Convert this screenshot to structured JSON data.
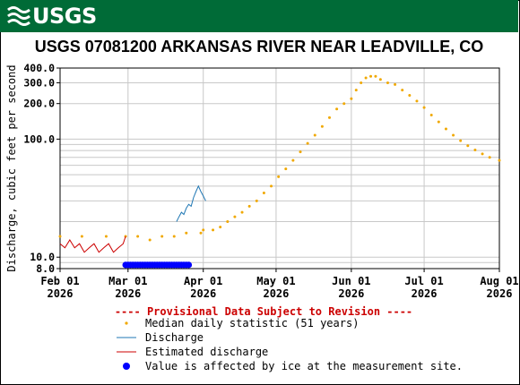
{
  "header": {
    "agency_logo": "USGS"
  },
  "chart_data": {
    "type": "line",
    "title": "USGS 07081200 ARKANSAS RIVER NEAR LEADVILLE, CO",
    "ylabel": "Discharge, cubic feet per second",
    "xlabel": "",
    "y_scale": "log",
    "ylim": [
      8,
      400
    ],
    "xlim": [
      "2026-02-01",
      "2026-08-01"
    ],
    "y_ticks": [
      {
        "value": 8,
        "label": "8.0"
      },
      {
        "value": 10,
        "label": "10.0"
      },
      {
        "value": 100,
        "label": "100.0"
      },
      {
        "value": 200,
        "label": "200.0"
      },
      {
        "value": 300,
        "label": "300.0"
      },
      {
        "value": 400,
        "label": "400.0"
      }
    ],
    "x_ticks": [
      {
        "date": "2026-02-01",
        "month": "Feb 01",
        "year": "2026"
      },
      {
        "date": "2026-03-01",
        "month": "Mar 01",
        "year": "2026"
      },
      {
        "date": "2026-04-01",
        "month": "Apr 01",
        "year": "2026"
      },
      {
        "date": "2026-05-01",
        "month": "May 01",
        "year": "2026"
      },
      {
        "date": "2026-06-01",
        "month": "Jun 01",
        "year": "2026"
      },
      {
        "date": "2026-07-01",
        "month": "Jul 01",
        "year": "2026"
      },
      {
        "date": "2026-08-01",
        "month": "Aug 01",
        "year": "2026"
      }
    ],
    "grid": true,
    "colors": {
      "median": "#f0a800",
      "discharge": "#1f77b4",
      "estimated": "#cc0000",
      "ice": "#0000ff",
      "grid": "#c8c8c8"
    },
    "series": [
      {
        "name": "Median daily statistic (51 years)",
        "style": "dots",
        "points": [
          [
            "2026-02-01",
            15
          ],
          [
            "2026-02-10",
            15
          ],
          [
            "2026-02-20",
            15
          ],
          [
            "2026-02-28",
            15
          ],
          [
            "2026-03-05",
            15
          ],
          [
            "2026-03-10",
            14
          ],
          [
            "2026-03-15",
            15
          ],
          [
            "2026-03-20",
            15
          ],
          [
            "2026-03-25",
            16
          ],
          [
            "2026-03-31",
            16
          ],
          [
            "2026-04-01",
            17
          ],
          [
            "2026-04-05",
            17
          ],
          [
            "2026-04-08",
            18
          ],
          [
            "2026-04-11",
            20
          ],
          [
            "2026-04-14",
            22
          ],
          [
            "2026-04-17",
            24
          ],
          [
            "2026-04-20",
            27
          ],
          [
            "2026-04-23",
            30
          ],
          [
            "2026-04-26",
            35
          ],
          [
            "2026-04-29",
            40
          ],
          [
            "2026-05-02",
            48
          ],
          [
            "2026-05-05",
            56
          ],
          [
            "2026-05-08",
            66
          ],
          [
            "2026-05-11",
            78
          ],
          [
            "2026-05-14",
            92
          ],
          [
            "2026-05-17",
            108
          ],
          [
            "2026-05-20",
            128
          ],
          [
            "2026-05-23",
            152
          ],
          [
            "2026-05-26",
            180
          ],
          [
            "2026-05-29",
            200
          ],
          [
            "2026-06-01",
            220
          ],
          [
            "2026-06-03",
            260
          ],
          [
            "2026-06-05",
            300
          ],
          [
            "2026-06-07",
            330
          ],
          [
            "2026-06-09",
            340
          ],
          [
            "2026-06-11",
            340
          ],
          [
            "2026-06-13",
            320
          ],
          [
            "2026-06-16",
            300
          ],
          [
            "2026-06-19",
            290
          ],
          [
            "2026-06-22",
            260
          ],
          [
            "2026-06-25",
            235
          ],
          [
            "2026-06-28",
            210
          ],
          [
            "2026-07-01",
            185
          ],
          [
            "2026-07-04",
            160
          ],
          [
            "2026-07-07",
            140
          ],
          [
            "2026-07-10",
            122
          ],
          [
            "2026-07-13",
            108
          ],
          [
            "2026-07-16",
            97
          ],
          [
            "2026-07-19",
            88
          ],
          [
            "2026-07-22",
            81
          ],
          [
            "2026-07-25",
            75
          ],
          [
            "2026-07-28",
            70
          ],
          [
            "2026-08-01",
            66
          ]
        ]
      },
      {
        "name": "Discharge",
        "style": "line",
        "points": [
          [
            "2026-03-21",
            20
          ],
          [
            "2026-03-22",
            22
          ],
          [
            "2026-03-23",
            24
          ],
          [
            "2026-03-24",
            23
          ],
          [
            "2026-03-25",
            26
          ],
          [
            "2026-03-26",
            28
          ],
          [
            "2026-03-27",
            27
          ],
          [
            "2026-03-28",
            32
          ],
          [
            "2026-03-29",
            36
          ],
          [
            "2026-03-30",
            40
          ],
          [
            "2026-03-31",
            36
          ],
          [
            "2026-04-01",
            33
          ],
          [
            "2026-04-02",
            30
          ]
        ]
      },
      {
        "name": "Estimated discharge",
        "style": "line",
        "points": [
          [
            "2026-02-01",
            13
          ],
          [
            "2026-02-03",
            12
          ],
          [
            "2026-02-05",
            14
          ],
          [
            "2026-02-07",
            12
          ],
          [
            "2026-02-09",
            13
          ],
          [
            "2026-02-11",
            11
          ],
          [
            "2026-02-13",
            12
          ],
          [
            "2026-02-15",
            13
          ],
          [
            "2026-02-17",
            11
          ],
          [
            "2026-02-19",
            12
          ],
          [
            "2026-02-21",
            13
          ],
          [
            "2026-02-23",
            11
          ],
          [
            "2026-02-25",
            12
          ],
          [
            "2026-02-27",
            13
          ],
          [
            "2026-02-28",
            15
          ]
        ]
      }
    ],
    "ice_period": {
      "name": "Value is affected by ice at the measurement site.",
      "start": "2026-02-28",
      "end": "2026-03-26",
      "value": 8.6
    },
    "legend": {
      "provisional": "---- Provisional Data Subject to Revision ----",
      "items": [
        "Median daily statistic (51 years)",
        "Discharge",
        "Estimated discharge",
        "Value is affected by ice at the measurement site."
      ]
    }
  }
}
